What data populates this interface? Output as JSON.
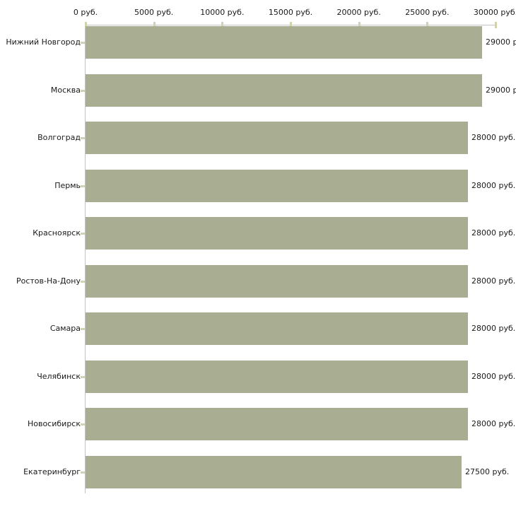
{
  "chart_data": {
    "type": "bar",
    "orientation": "horizontal",
    "title": "",
    "xlabel": "",
    "ylabel": "",
    "xlim": [
      0,
      30000
    ],
    "grid": false,
    "legend": false,
    "x_ticks": [
      "0 руб.",
      "5000 руб.",
      "10000 руб.",
      "15000 руб.",
      "20000 руб.",
      "25000 руб.",
      "30000 руб."
    ],
    "categories": [
      "Нижний Новгород",
      "Москва",
      "Волгоград",
      "Пермь",
      "Красноярск",
      "Ростов-На-Дону",
      "Самара",
      "Челябинск",
      "Новосибирск",
      "Екатеринбург"
    ],
    "values": [
      29000,
      29000,
      28000,
      28000,
      28000,
      28000,
      28000,
      28000,
      28000,
      27500
    ],
    "value_labels": [
      "29000 р",
      "29000 р",
      "28000 руб.",
      "28000 руб.",
      "28000 руб.",
      "28000 руб.",
      "28000 руб.",
      "28000 руб.",
      "28000 руб.",
      "27500 руб."
    ],
    "colors": {
      "bar": "#a9ae93",
      "axis": "#c3c3c3",
      "tick_mark": "#d1d3ae",
      "text": "#1a1a1a",
      "background": "#ffffff"
    }
  }
}
